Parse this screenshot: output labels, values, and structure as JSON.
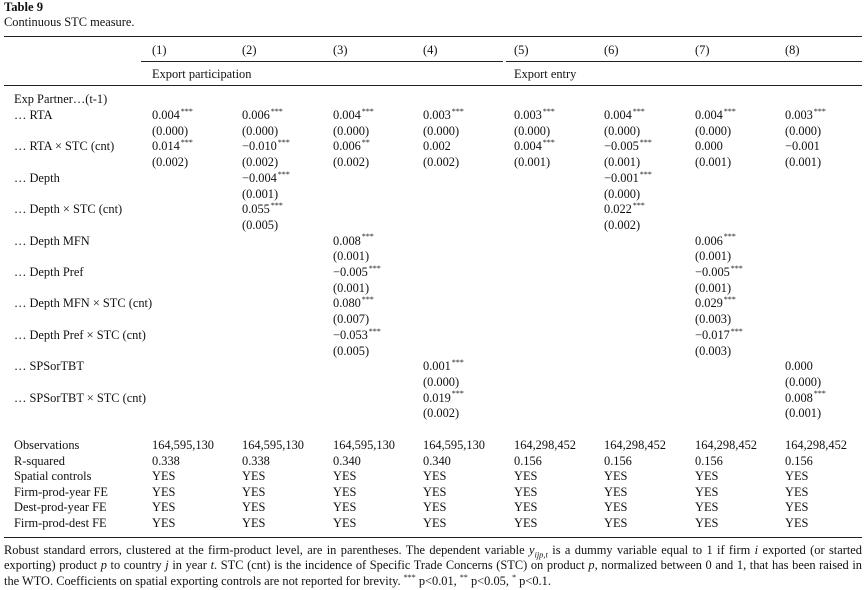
{
  "table": {
    "number": "Table 9",
    "caption": "Continuous STC measure.",
    "columns": [
      "(1)",
      "(2)",
      "(3)",
      "(4)",
      "(5)",
      "(6)",
      "(7)",
      "(8)"
    ],
    "groups": [
      "Export participation",
      "Export entry"
    ],
    "section_label": "Exp Partner…(t-1)",
    "rows": [
      {
        "label": "… RTA",
        "cells": [
          [
            "0.004",
            "***"
          ],
          [
            "0.006",
            "***"
          ],
          [
            "0.004",
            "***"
          ],
          [
            "0.003",
            "***"
          ],
          [
            "0.003",
            "***"
          ],
          [
            "0.004",
            "***"
          ],
          [
            "0.004",
            "***"
          ],
          [
            "0.003",
            "***"
          ]
        ]
      },
      {
        "label": "",
        "cells": [
          [
            "(0.000)",
            ""
          ],
          [
            "(0.000)",
            ""
          ],
          [
            "(0.000)",
            ""
          ],
          [
            "(0.000)",
            ""
          ],
          [
            "(0.000)",
            ""
          ],
          [
            "(0.000)",
            ""
          ],
          [
            "(0.000)",
            ""
          ],
          [
            "(0.000)",
            ""
          ]
        ]
      },
      {
        "label": "… RTA × STC (cnt)",
        "cells": [
          [
            "0.014",
            "***"
          ],
          [
            "−0.010",
            "***"
          ],
          [
            "0.006",
            "**"
          ],
          [
            "0.002",
            ""
          ],
          [
            "0.004",
            "***"
          ],
          [
            "−0.005",
            "***"
          ],
          [
            "0.000",
            ""
          ],
          [
            "−0.001",
            ""
          ]
        ]
      },
      {
        "label": "",
        "cells": [
          [
            "(0.002)",
            ""
          ],
          [
            "(0.002)",
            ""
          ],
          [
            "(0.002)",
            ""
          ],
          [
            "(0.002)",
            ""
          ],
          [
            "(0.001)",
            ""
          ],
          [
            "(0.001)",
            ""
          ],
          [
            "(0.001)",
            ""
          ],
          [
            "(0.001)",
            ""
          ]
        ]
      },
      {
        "label": "… Depth",
        "cells": [
          [
            "",
            ""
          ],
          [
            "−0.004",
            "***"
          ],
          [
            "",
            ""
          ],
          [
            "",
            ""
          ],
          [
            "",
            ""
          ],
          [
            "−0.001",
            "***"
          ],
          [
            "",
            ""
          ],
          [
            "",
            ""
          ]
        ]
      },
      {
        "label": "",
        "cells": [
          [
            "",
            ""
          ],
          [
            "(0.001)",
            ""
          ],
          [
            "",
            ""
          ],
          [
            "",
            ""
          ],
          [
            "",
            ""
          ],
          [
            "(0.000)",
            ""
          ],
          [
            "",
            ""
          ],
          [
            "",
            ""
          ]
        ]
      },
      {
        "label": "… Depth × STC (cnt)",
        "cells": [
          [
            "",
            ""
          ],
          [
            "0.055",
            "***"
          ],
          [
            "",
            ""
          ],
          [
            "",
            ""
          ],
          [
            "",
            ""
          ],
          [
            "0.022",
            "***"
          ],
          [
            "",
            ""
          ],
          [
            "",
            ""
          ]
        ]
      },
      {
        "label": "",
        "cells": [
          [
            "",
            ""
          ],
          [
            "(0.005)",
            ""
          ],
          [
            "",
            ""
          ],
          [
            "",
            ""
          ],
          [
            "",
            ""
          ],
          [
            "(0.002)",
            ""
          ],
          [
            "",
            ""
          ],
          [
            "",
            ""
          ]
        ]
      },
      {
        "label": "… Depth MFN",
        "cells": [
          [
            "",
            ""
          ],
          [
            "",
            ""
          ],
          [
            "0.008",
            "***"
          ],
          [
            "",
            ""
          ],
          [
            "",
            ""
          ],
          [
            "",
            ""
          ],
          [
            "0.006",
            "***"
          ],
          [
            "",
            ""
          ]
        ]
      },
      {
        "label": "",
        "cells": [
          [
            "",
            ""
          ],
          [
            "",
            ""
          ],
          [
            "(0.001)",
            ""
          ],
          [
            "",
            ""
          ],
          [
            "",
            ""
          ],
          [
            "",
            ""
          ],
          [
            "(0.001)",
            ""
          ],
          [
            "",
            ""
          ]
        ]
      },
      {
        "label": "… Depth Pref",
        "cells": [
          [
            "",
            ""
          ],
          [
            "",
            ""
          ],
          [
            "−0.005",
            "***"
          ],
          [
            "",
            ""
          ],
          [
            "",
            ""
          ],
          [
            "",
            ""
          ],
          [
            "−0.005",
            "***"
          ],
          [
            "",
            ""
          ]
        ]
      },
      {
        "label": "",
        "cells": [
          [
            "",
            ""
          ],
          [
            "",
            ""
          ],
          [
            "(0.001)",
            ""
          ],
          [
            "",
            ""
          ],
          [
            "",
            ""
          ],
          [
            "",
            ""
          ],
          [
            "(0.001)",
            ""
          ],
          [
            "",
            ""
          ]
        ]
      },
      {
        "label": "… Depth MFN × STC (cnt)",
        "cells": [
          [
            "",
            ""
          ],
          [
            "",
            ""
          ],
          [
            "0.080",
            "***"
          ],
          [
            "",
            ""
          ],
          [
            "",
            ""
          ],
          [
            "",
            ""
          ],
          [
            "0.029",
            "***"
          ],
          [
            "",
            ""
          ]
        ]
      },
      {
        "label": "",
        "cells": [
          [
            "",
            ""
          ],
          [
            "",
            ""
          ],
          [
            "(0.007)",
            ""
          ],
          [
            "",
            ""
          ],
          [
            "",
            ""
          ],
          [
            "",
            ""
          ],
          [
            "(0.003)",
            ""
          ],
          [
            "",
            ""
          ]
        ]
      },
      {
        "label": "… Depth Pref × STC (cnt)",
        "cells": [
          [
            "",
            ""
          ],
          [
            "",
            ""
          ],
          [
            "−0.053",
            "***"
          ],
          [
            "",
            ""
          ],
          [
            "",
            ""
          ],
          [
            "",
            ""
          ],
          [
            "−0.017",
            "***"
          ],
          [
            "",
            ""
          ]
        ]
      },
      {
        "label": "",
        "cells": [
          [
            "",
            ""
          ],
          [
            "",
            ""
          ],
          [
            "(0.005)",
            ""
          ],
          [
            "",
            ""
          ],
          [
            "",
            ""
          ],
          [
            "",
            ""
          ],
          [
            "(0.003)",
            ""
          ],
          [
            "",
            ""
          ]
        ]
      },
      {
        "label": "… SPSorTBT",
        "cells": [
          [
            "",
            ""
          ],
          [
            "",
            ""
          ],
          [
            "",
            ""
          ],
          [
            "0.001",
            "***"
          ],
          [
            "",
            ""
          ],
          [
            "",
            ""
          ],
          [
            "",
            ""
          ],
          [
            "0.000",
            ""
          ]
        ]
      },
      {
        "label": "",
        "cells": [
          [
            "",
            ""
          ],
          [
            "",
            ""
          ],
          [
            "",
            ""
          ],
          [
            "(0.000)",
            ""
          ],
          [
            "",
            ""
          ],
          [
            "",
            ""
          ],
          [
            "",
            ""
          ],
          [
            "(0.000)",
            ""
          ]
        ]
      },
      {
        "label": "… SPSorTBT × STC (cnt)",
        "cells": [
          [
            "",
            ""
          ],
          [
            "",
            ""
          ],
          [
            "",
            ""
          ],
          [
            "0.019",
            "***"
          ],
          [
            "",
            ""
          ],
          [
            "",
            ""
          ],
          [
            "",
            ""
          ],
          [
            "0.008",
            "***"
          ]
        ]
      },
      {
        "label": "",
        "cells": [
          [
            "",
            ""
          ],
          [
            "",
            ""
          ],
          [
            "",
            ""
          ],
          [
            "(0.002)",
            ""
          ],
          [
            "",
            ""
          ],
          [
            "",
            ""
          ],
          [
            "",
            ""
          ],
          [
            "(0.001)",
            ""
          ]
        ]
      }
    ],
    "stats": [
      {
        "label": "Observations",
        "cells": [
          "164,595,130",
          "164,595,130",
          "164,595,130",
          "164,595,130",
          "164,298,452",
          "164,298,452",
          "164,298,452",
          "164,298,452"
        ]
      },
      {
        "label": "R-squared",
        "cells": [
          "0.338",
          "0.338",
          "0.340",
          "0.340",
          "0.156",
          "0.156",
          "0.156",
          "0.156"
        ]
      },
      {
        "label": "Spatial controls",
        "cells": [
          "YES",
          "YES",
          "YES",
          "YES",
          "YES",
          "YES",
          "YES",
          "YES"
        ]
      },
      {
        "label": "Firm-prod-year FE",
        "cells": [
          "YES",
          "YES",
          "YES",
          "YES",
          "YES",
          "YES",
          "YES",
          "YES"
        ]
      },
      {
        "label": "Dest-prod-year FE",
        "cells": [
          "YES",
          "YES",
          "YES",
          "YES",
          "YES",
          "YES",
          "YES",
          "YES"
        ]
      },
      {
        "label": "Firm-prod-dest FE",
        "cells": [
          "YES",
          "YES",
          "YES",
          "YES",
          "YES",
          "YES",
          "YES",
          "YES"
        ]
      }
    ],
    "footnote": {
      "part1": "Robust standard errors, clustered at the firm-product level, are in parentheses. The dependent variable ",
      "y_var": "y",
      "y_sub": "ijp,t",
      "part2": " is a dummy variable equal to 1 if firm ",
      "i_var": "i",
      "part3": " exported (or started exporting) product ",
      "p_var": "p",
      "part4": " to country ",
      "j_var": "j",
      "part5": " in year ",
      "t_var": "t",
      "part6": ". STC (cnt) is the incidence of Specific Trade Concerns (STC) on product ",
      "p_var2": "p",
      "part7": ", normalized between 0 and 1, that has been raised in the WTO. Coefficients on spatial exporting controls are not reported for brevity. ",
      "sig1": "***",
      "sig1_text": " p<0.01, ",
      "sig2": "**",
      "sig2_text": " p<0.05, ",
      "sig3": "*",
      "sig3_text": " p<0.1."
    }
  }
}
